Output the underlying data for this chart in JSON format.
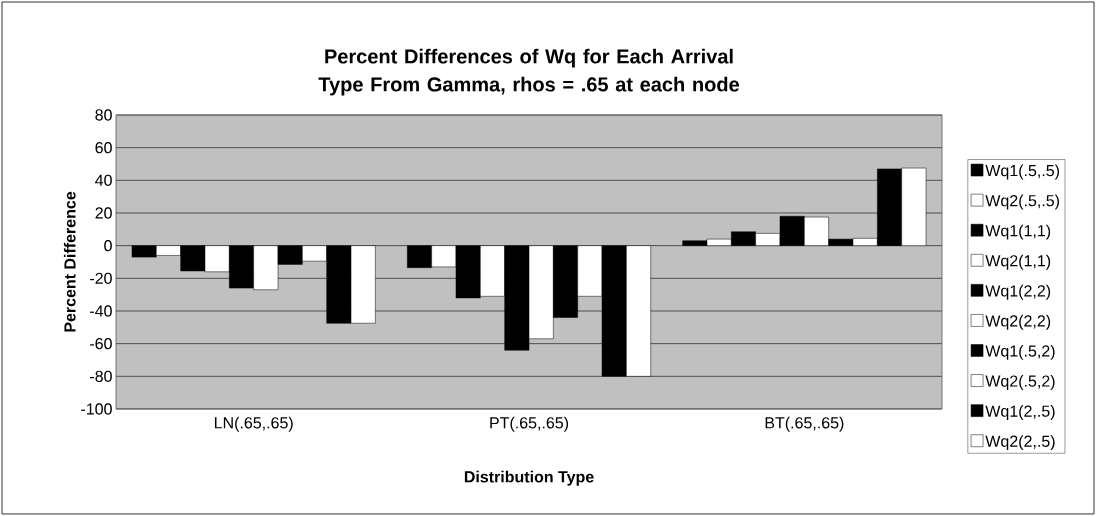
{
  "chart_data": {
    "type": "bar",
    "title": "Percent Differences of Wq for Each Arrival Type From Gamma, rhos = .65 at each node",
    "xlabel": "Distribution Type",
    "ylabel": "Percent Difference",
    "categories": [
      "LN(.65,.65)",
      "PT(.65,.65)",
      "BT(.65,.65)"
    ],
    "series": [
      {
        "name": "Wq1(.5,.5)",
        "color": "#000000",
        "values": [
          -7,
          -13.5,
          3
        ]
      },
      {
        "name": "Wq2(.5,.5)",
        "color": "#ffffff",
        "values": [
          -6,
          -13,
          4
        ]
      },
      {
        "name": "Wq1(1,1)",
        "color": "#000000",
        "values": [
          -15.5,
          -32,
          8.5
        ]
      },
      {
        "name": "Wq2(1,1)",
        "color": "#ffffff",
        "values": [
          -16,
          -31,
          7.5
        ]
      },
      {
        "name": "Wq1(2,2)",
        "color": "#000000",
        "values": [
          -26,
          -64,
          18
        ]
      },
      {
        "name": "Wq2(2,2)",
        "color": "#ffffff",
        "values": [
          -27,
          -57,
          17.5
        ]
      },
      {
        "name": "Wq1(.5,2)",
        "color": "#000000",
        "values": [
          -11.5,
          -44,
          4
        ]
      },
      {
        "name": "Wq2(.5,2)",
        "color": "#ffffff",
        "values": [
          -9.5,
          -31,
          4.5
        ]
      },
      {
        "name": "Wq1(2,.5)",
        "color": "#000000",
        "values": [
          -47.5,
          -80,
          47
        ]
      },
      {
        "name": "Wq2(2,.5)",
        "color": "#ffffff",
        "values": [
          -47.5,
          -80,
          47.5
        ]
      }
    ],
    "ylim": [
      -100,
      80
    ],
    "yticks": [
      -100,
      -80,
      -60,
      -40,
      -20,
      0,
      20,
      40,
      60,
      80
    ],
    "grid": "y",
    "legend": "right"
  }
}
